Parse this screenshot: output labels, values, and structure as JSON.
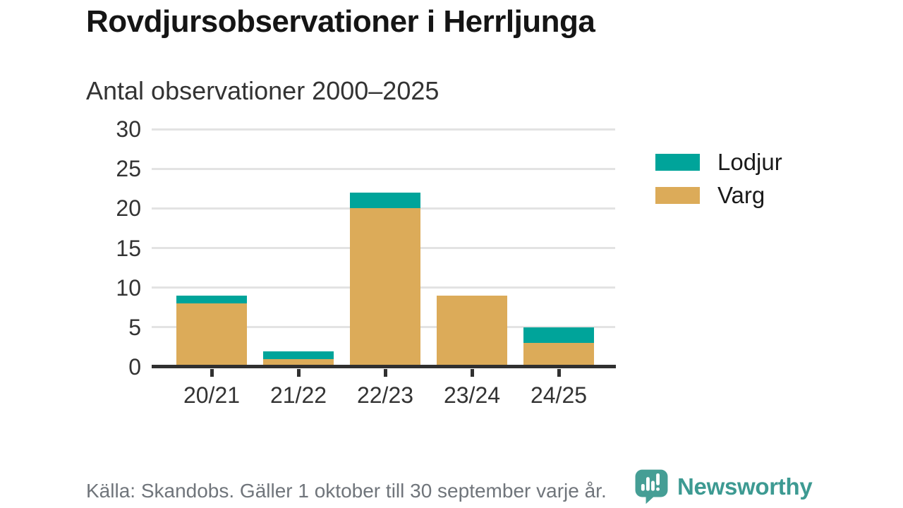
{
  "header": {
    "title": "Rovdjursobservationer i Herrljunga",
    "subtitle": "Antal observationer 2000–2025"
  },
  "chart_data": {
    "type": "bar",
    "stacked": true,
    "title": "Rovdjursobservationer i Herrljunga",
    "subtitle": "Antal observationer 2000–2025",
    "categories": [
      "20/21",
      "21/22",
      "22/23",
      "23/24",
      "24/25"
    ],
    "series": [
      {
        "name": "Varg",
        "color": "#dcab59",
        "values": [
          8,
          1,
          20,
          9,
          3
        ]
      },
      {
        "name": "Lodjur",
        "color": "#00a49a",
        "values": [
          1,
          1,
          2,
          0,
          2
        ]
      }
    ],
    "totals": [
      9,
      2,
      22,
      9,
      5
    ],
    "xlabel": "",
    "ylabel": "",
    "ylim": [
      0,
      30
    ],
    "y_ticks": [
      0,
      5,
      10,
      15,
      20,
      25,
      30
    ],
    "grid": true,
    "legend_position": "right",
    "legend": [
      {
        "label": "Lodjur",
        "color": "#00a49a"
      },
      {
        "label": "Varg",
        "color": "#dcab59"
      }
    ]
  },
  "colors": {
    "lodjur": "#00a49a",
    "varg": "#dcab59",
    "gridline": "#e3e3e3",
    "axis": "#303030",
    "text": "#333333",
    "brand_teal": "#3d9a92"
  },
  "footer": {
    "source": "Källa: Skandobs. Gäller 1 oktober till 30 september varje år.",
    "brand": "Newsworthy"
  }
}
